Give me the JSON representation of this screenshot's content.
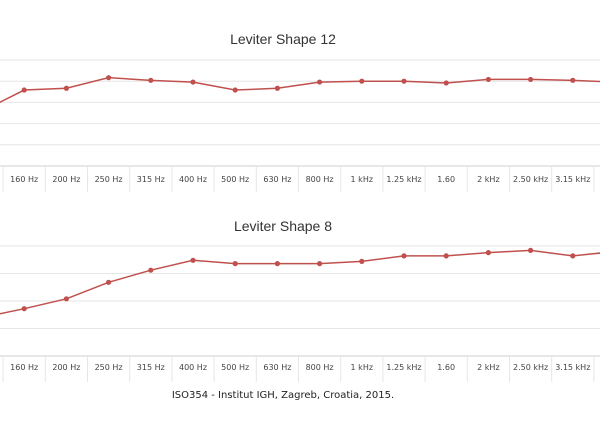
{
  "colors": {
    "series": "#c0504d",
    "grid": "#e6e6e6",
    "axis": "#cfcfcf"
  },
  "caption": "ISO354 - Institut IGH, Zagreb, Croatia, 2015.",
  "chart_data": [
    {
      "type": "line",
      "title": "Leviter Shape 12",
      "categories": [
        "",
        "160 Hz",
        "200 Hz",
        "250 Hz",
        "315 Hz",
        "400 Hz",
        "500 Hz",
        "630 Hz",
        "800 Hz",
        "1 kHz",
        "1.25 kHz",
        "1.60",
        "2 kHz",
        "2.50 kHz",
        "3.15 kHz",
        ""
      ],
      "series": [
        {
          "values": [
            0.62,
            0.86,
            0.88,
            1.0,
            0.97,
            0.95,
            0.86,
            0.88,
            0.95,
            0.96,
            0.96,
            0.94,
            0.98,
            0.98,
            0.97,
            0.95
          ]
        }
      ],
      "ylim": [
        0,
        1.2
      ],
      "grid": true
    },
    {
      "type": "line",
      "title": "Leviter Shape 8",
      "categories": [
        "",
        "160 Hz",
        "200 Hz",
        "250 Hz",
        "315 Hz",
        "400 Hz",
        "500 Hz",
        "630 Hz",
        "800 Hz",
        "1 kHz",
        "1.25 kHz",
        "1.60",
        "2 kHz",
        "2.50 kHz",
        "3.15 kHz",
        ""
      ],
      "series": [
        {
          "values": [
            0.35,
            0.43,
            0.52,
            0.67,
            0.78,
            0.87,
            0.84,
            0.84,
            0.84,
            0.86,
            0.91,
            0.91,
            0.94,
            0.96,
            0.91,
            0.95
          ]
        }
      ],
      "ylim": [
        0,
        1.0
      ],
      "grid": true
    }
  ]
}
